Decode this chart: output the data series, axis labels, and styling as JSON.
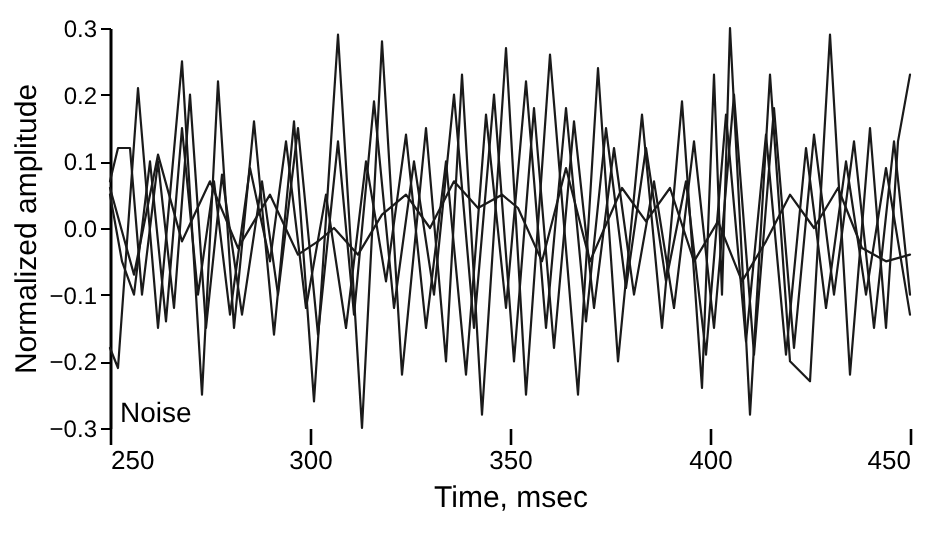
{
  "chart_data": {
    "type": "line",
    "xlabel": "Time, msec",
    "ylabel": "Normalized amplitude",
    "annotations": [
      "Noise"
    ],
    "xlim": [
      250,
      450
    ],
    "xticks": [
      250,
      300,
      350,
      400,
      450
    ],
    "ylim": [
      -0.3,
      0.3
    ],
    "yticks": [
      -0.3,
      -0.2,
      -0.1,
      {
        "value": 0,
        "label": "0.0"
      },
      0.1,
      0.2,
      0.3
    ],
    "grid": false,
    "legend": false,
    "marker": "none",
    "line_style": "solid",
    "series": [
      {
        "color": "#1a1a1a",
        "x": [
          250,
          252,
          257,
          262,
          268,
          273,
          277,
          281,
          286,
          291,
          296,
          301,
          307,
          313,
          318,
          323,
          329,
          334,
          338,
          343,
          349,
          354,
          360,
          367,
          372,
          377,
          383,
          388,
          393,
          398,
          401,
          403,
          405,
          410,
          415,
          420,
          425,
          430,
          435,
          440,
          444,
          447,
          450
        ],
        "values": [
          -0.18,
          -0.21,
          0.21,
          -0.15,
          0.25,
          -0.25,
          0.22,
          -0.15,
          0.16,
          -0.16,
          0.16,
          -0.26,
          0.29,
          -0.3,
          0.28,
          -0.22,
          0.15,
          -0.2,
          0.23,
          -0.28,
          0.27,
          -0.25,
          0.26,
          -0.25,
          0.24,
          -0.2,
          0.17,
          -0.15,
          0.19,
          -0.24,
          0.23,
          -0.1,
          0.3,
          -0.28,
          0.23,
          -0.2,
          -0.23,
          0.29,
          -0.22,
          0.15,
          -0.15,
          0.13,
          0.23
        ]
      },
      {
        "color": "#1a1a1a",
        "x": [
          250,
          252,
          255,
          258,
          262,
          266,
          270,
          274,
          278,
          283,
          288,
          292,
          297,
          302,
          307,
          311,
          316,
          321,
          326,
          331,
          336,
          341,
          346,
          351,
          356,
          361,
          366,
          371,
          376,
          381,
          386,
          391,
          396,
          401,
          406,
          411,
          416,
          421,
          426,
          431,
          436,
          441,
          446,
          450
        ],
        "values": [
          0.07,
          0.12,
          0.12,
          -0.1,
          0.1,
          -0.12,
          0.2,
          -0.15,
          0.08,
          -0.13,
          0.07,
          -0.1,
          0.15,
          -0.16,
          0.13,
          -0.13,
          0.19,
          -0.12,
          0.1,
          -0.1,
          0.2,
          -0.15,
          0.2,
          -0.2,
          0.18,
          -0.18,
          0.16,
          -0.12,
          0.12,
          -0.1,
          0.07,
          -0.12,
          0.13,
          -0.15,
          0.2,
          -0.19,
          0.18,
          -0.18,
          0.14,
          -0.1,
          0.13,
          -0.15,
          0.13,
          -0.1
        ]
      },
      {
        "color": "#1a1a1a",
        "x": [
          250,
          253,
          256,
          260,
          264,
          268,
          272,
          276,
          280,
          285,
          290,
          294,
          299,
          304,
          309,
          314,
          319,
          324,
          329,
          334,
          339,
          344,
          349,
          354,
          359,
          364,
          369,
          374,
          379,
          384,
          389,
          394,
          399,
          404,
          409,
          414,
          419,
          424,
          429,
          434,
          439,
          444,
          450
        ],
        "values": [
          0.05,
          -0.05,
          -0.1,
          0.1,
          -0.14,
          0.15,
          -0.1,
          0.07,
          -0.13,
          0.09,
          -0.05,
          0.13,
          -0.12,
          0.05,
          -0.15,
          0.1,
          -0.08,
          0.14,
          -0.15,
          0.1,
          -0.22,
          0.17,
          -0.12,
          0.22,
          -0.15,
          0.18,
          -0.14,
          0.15,
          -0.09,
          0.12,
          -0.08,
          0.07,
          -0.19,
          0.17,
          -0.17,
          0.14,
          -0.19,
          0.12,
          -0.12,
          0.1,
          -0.1,
          0.09,
          -0.13
        ]
      },
      {
        "color": "#1a1a1a",
        "x": [
          250,
          256,
          262,
          268,
          275,
          282,
          290,
          297,
          302,
          306,
          312,
          318,
          324,
          330,
          336,
          342,
          348,
          352,
          358,
          364,
          370,
          378,
          384,
          390,
          396,
          402,
          408,
          414,
          420,
          426,
          432,
          438,
          444,
          450
        ],
        "values": [
          0.06,
          -0.07,
          0.11,
          -0.02,
          0.07,
          -0.03,
          0.05,
          -0.04,
          -0.02,
          0.0,
          -0.04,
          0.02,
          0.05,
          0.0,
          0.07,
          0.03,
          0.05,
          0.03,
          -0.05,
          0.09,
          -0.05,
          0.06,
          0.01,
          0.06,
          -0.05,
          0.01,
          -0.08,
          -0.02,
          0.05,
          0.0,
          0.06,
          -0.03,
          -0.05,
          -0.04
        ]
      }
    ]
  }
}
